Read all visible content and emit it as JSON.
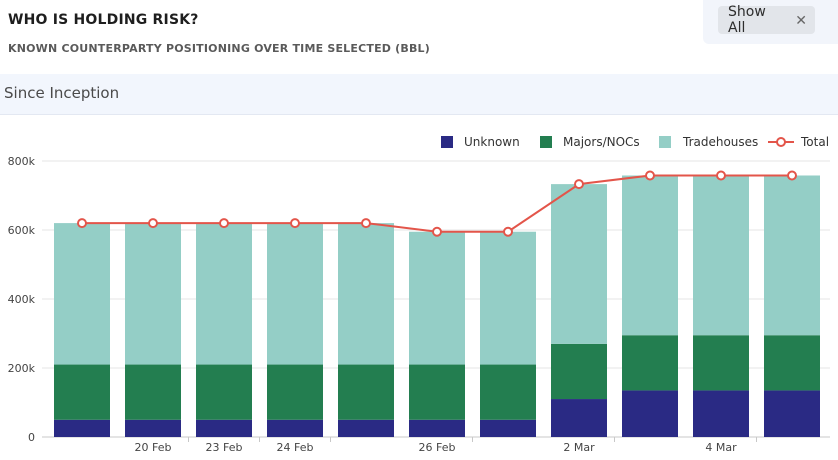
{
  "header": {
    "title": "WHO IS HOLDING RISK?",
    "subtitle": "KNOWN COUNTERPARTY POSITIONING OVER TIME SELECTED (BBL)"
  },
  "filter": {
    "show_all_label": "Show All",
    "close_icon": "close-icon"
  },
  "period": {
    "label": "Since Inception"
  },
  "colors": {
    "unknown": "#2a2a84",
    "majors": "#237e50",
    "tradehouses": "#94cec6",
    "total": "#e3554a",
    "grid": "#e4e4e4",
    "axis": "#c8c8c8"
  },
  "chart_data": {
    "type": "bar",
    "stacked": true,
    "categories": [
      "",
      "20 Feb",
      "23 Feb",
      "24 Feb",
      "",
      "26 Feb",
      "",
      "2 Mar",
      "",
      "4 Mar",
      ""
    ],
    "series": [
      {
        "name": "Unknown",
        "values": [
          50000,
          50000,
          50000,
          50000,
          50000,
          50000,
          50000,
          110000,
          135000,
          135000,
          135000
        ]
      },
      {
        "name": "Majors/NOCs",
        "values": [
          160000,
          160000,
          160000,
          160000,
          160000,
          160000,
          160000,
          160000,
          160000,
          160000,
          160000
        ]
      },
      {
        "name": "Tradehouses",
        "values": [
          410000,
          410000,
          410000,
          410000,
          410000,
          385000,
          385000,
          463000,
          463000,
          463000,
          463000
        ]
      }
    ],
    "line": {
      "name": "Total",
      "values": [
        620000,
        620000,
        620000,
        620000,
        620000,
        595000,
        595000,
        733000,
        758000,
        758000,
        758000
      ]
    },
    "y_ticks": [
      "0",
      "200k",
      "400k",
      "600k",
      "800k"
    ],
    "y_tick_values": [
      0,
      200000,
      400000,
      600000,
      800000
    ],
    "ylim": [
      0,
      800000
    ],
    "legend": [
      "Unknown",
      "Majors/NOCs",
      "Tradehouses",
      "Total"
    ],
    "legend_position": "top-right",
    "grid": true
  }
}
